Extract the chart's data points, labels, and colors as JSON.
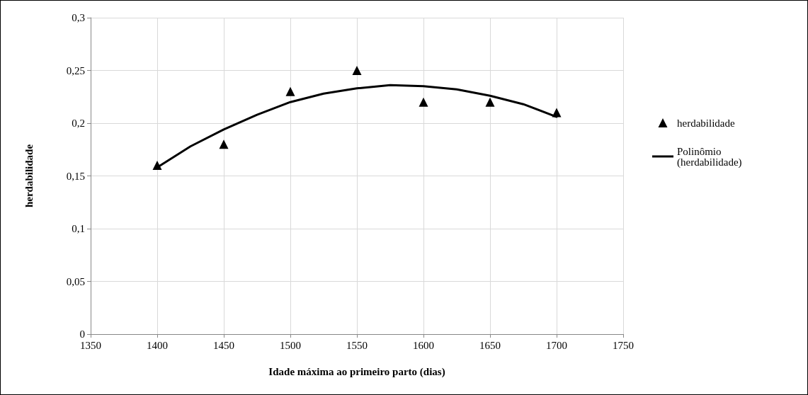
{
  "chart_data": {
    "type": "scatter",
    "xlabel": "Idade máxima ao primeiro parto (dias)",
    "ylabel": "herdabilidade",
    "series": [
      {
        "name": "herdabilidade",
        "color": "#000000",
        "marker": "triangle",
        "x": [
          1400,
          1450,
          1500,
          1550,
          1600,
          1650,
          1700
        ],
        "values": [
          0.16,
          0.18,
          0.23,
          0.25,
          0.22,
          0.22,
          0.21
        ]
      },
      {
        "name": "Polinômio (herdabilidade)",
        "type": "line",
        "color": "#000000",
        "marker": "none",
        "x": [
          1400,
          1425,
          1450,
          1475,
          1500,
          1525,
          1550,
          1575,
          1600,
          1625,
          1650,
          1675,
          1700
        ],
        "values": [
          0.158,
          0.178,
          0.194,
          0.208,
          0.22,
          0.228,
          0.233,
          0.236,
          0.235,
          0.232,
          0.226,
          0.218,
          0.206
        ]
      }
    ],
    "xlim": [
      1350,
      1750
    ],
    "xticks": [
      1350,
      1400,
      1450,
      1500,
      1550,
      1600,
      1650,
      1700,
      1750
    ],
    "ylim": [
      0,
      0.3
    ],
    "yticks": [
      {
        "value": 0,
        "label": "0"
      },
      {
        "value": 0.05,
        "label": "0,05"
      },
      {
        "value": 0.1,
        "label": "0,1"
      },
      {
        "value": 0.15,
        "label": "0,15"
      },
      {
        "value": 0.2,
        "label": "0,2"
      },
      {
        "value": 0.25,
        "label": "0,25"
      },
      {
        "value": 0.3,
        "label": "0,3"
      }
    ],
    "grid": true,
    "legend": "right"
  }
}
